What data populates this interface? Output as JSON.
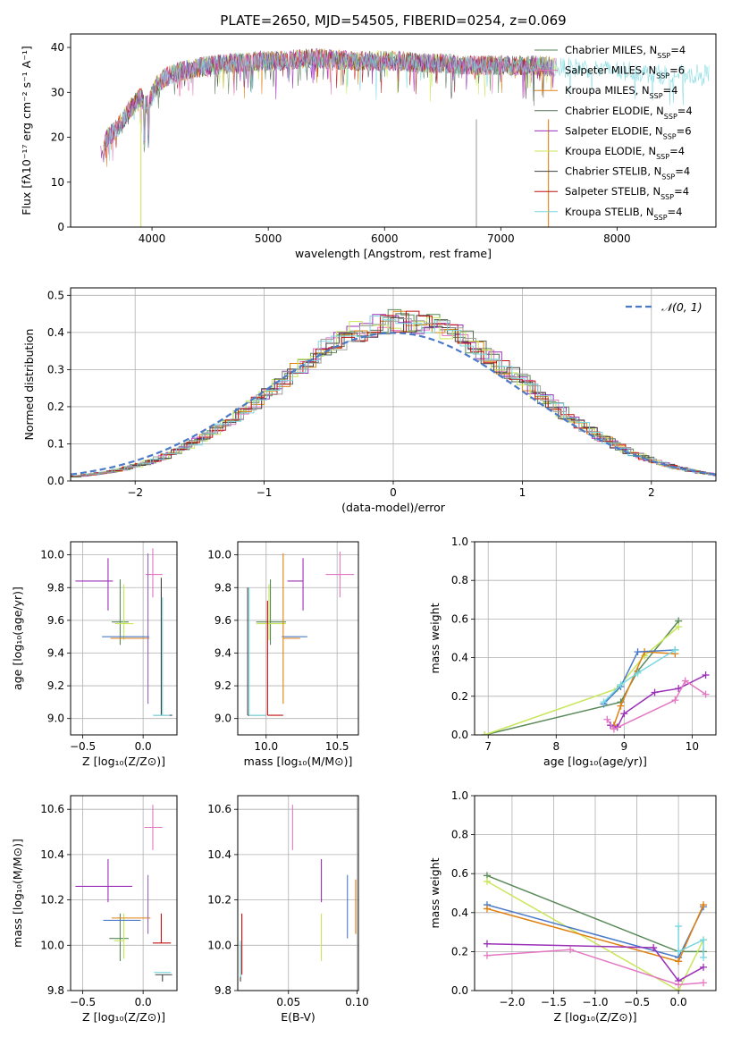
{
  "figure": {
    "title": "PLATE=2650, MJD=54505, FIBERID=0254, z=0.069"
  },
  "colors": {
    "grid": "#b0b0b0",
    "series": [
      "#5a8a5a",
      "#e377c2",
      "#e08010",
      "#556b55",
      "#9b30b8",
      "#c8e65a",
      "#404040",
      "#c01010",
      "#78d8e0",
      "#4a7ac8"
    ]
  },
  "chart_data": [
    {
      "id": "spectrum",
      "type": "line",
      "title": "PLATE=2650, MJD=54505, FIBERID=0254, z=0.069",
      "xlabel": "wavelength [Angstrom, rest frame]",
      "ylabel": "Flux [fλ10⁻¹⁷ erg cm⁻² s⁻¹ A⁻¹]",
      "xlim": [
        3300,
        8850
      ],
      "ylim": [
        0,
        43
      ],
      "xticks": [
        "4000",
        "5000",
        "6000",
        "7000",
        "8000"
      ],
      "yticks": [
        "0",
        "10",
        "20",
        "30",
        "40"
      ],
      "legend_position": "right",
      "legend": [
        "Chabrier MILES, N_SSP=4",
        "Salpeter MILES, N_SSP=6",
        "Kroupa MILES, N_SSP=4",
        "Chabrier ELODIE, N_SSP=4",
        "Salpeter ELODIE, N_SSP=6",
        "Kroupa ELODIE, N_SSP=4",
        "Chabrier STELIB, N_SSP=4",
        "Salpeter STELIB, N_SSP=4",
        "Kroupa STELIB, N_SSP=4"
      ],
      "envelope": {
        "x": [
          3560,
          3620,
          3700,
          3800,
          3900,
          3960,
          4050,
          4150,
          4300,
          4500,
          4700,
          4900,
          5100,
          5300,
          5500,
          5700,
          5900,
          6100,
          6300,
          6500,
          6700,
          6900,
          7100,
          7300,
          7500,
          7700,
          7900,
          8100,
          8300,
          8500,
          8800
        ],
        "y": [
          16,
          20,
          22,
          26,
          29,
          27,
          32,
          34,
          35,
          36,
          36.5,
          37,
          37,
          37.5,
          37.5,
          37,
          37,
          37,
          36.5,
          36.5,
          36,
          36,
          36,
          36,
          35.5,
          35.5,
          35,
          35,
          34,
          34,
          34
        ]
      }
    },
    {
      "id": "residuals",
      "type": "line",
      "xlabel": "(data-model)/error",
      "ylabel": "Normed distribution",
      "xlim": [
        -2.5,
        2.5
      ],
      "ylim": [
        0,
        0.52
      ],
      "xticks": [
        "−2",
        "−1",
        "0",
        "1",
        "2"
      ],
      "yticks": [
        "0.0",
        "0.1",
        "0.2",
        "0.3",
        "0.4",
        "0.5"
      ],
      "legend": [
        "𝒩(0, 1)"
      ],
      "legend_position": "top-right",
      "bin_width": 0.1,
      "reference_curve": "normal(0,1)"
    },
    {
      "id": "z-age",
      "type": "scatter",
      "xlabel": "Z [log₁₀(Z/Z⊙)]",
      "ylabel": "age  [log₁₀(age/yr)]",
      "xlim": [
        -0.6,
        0.28
      ],
      "ylim": [
        8.9,
        10.08
      ],
      "xticks": [
        "−0.5",
        "0.0"
      ],
      "yticks": [
        "9.0",
        "9.2",
        "9.4",
        "9.6",
        "9.8",
        "10.0"
      ],
      "points": [
        {
          "x": -0.29,
          "y": 9.84,
          "xerr": [
            0.27,
            0.04
          ],
          "yerr": [
            0.18,
            0.14
          ],
          "color": "#9b30b8"
        },
        {
          "x": 0.08,
          "y": 9.88,
          "xerr": [
            0.06,
            0.08
          ],
          "yerr": [
            0.14,
            0.16
          ],
          "color": "#e377c2"
        },
        {
          "x": -0.19,
          "y": 9.59,
          "xerr": [
            0.07,
            0.07
          ],
          "yerr": [
            0.14,
            0.26
          ],
          "color": "#5a8a5a"
        },
        {
          "x": -0.16,
          "y": 9.58,
          "xerr": [
            0.07,
            0.08
          ],
          "yerr": [
            0.1,
            0.24
          ],
          "color": "#c8e65a"
        },
        {
          "x": -0.19,
          "y": 9.5,
          "xerr": [
            0.15,
            0.24
          ],
          "yerr": [
            0.0,
            0.0
          ],
          "color": "#4a7ac8"
        },
        {
          "x": -0.12,
          "y": 9.49,
          "xerr": [
            0.15,
            0.17
          ],
          "yerr": [
            0.0,
            0.0
          ],
          "color": "#e08010"
        },
        {
          "x": 0.04,
          "y": 9.49,
          "xerr": [
            0.0,
            0.0
          ],
          "yerr": [
            0.4,
            0.52
          ],
          "color": "#9467bd"
        },
        {
          "x": 0.15,
          "y": 9.02,
          "xerr": [
            0.06,
            0.09
          ],
          "yerr": [
            0.0,
            0.84
          ],
          "color": "#404040"
        },
        {
          "x": 0.16,
          "y": 9.02,
          "xerr": [
            0.08,
            0.06
          ],
          "yerr": [
            0.0,
            0.72
          ],
          "color": "#78d8e0"
        }
      ]
    },
    {
      "id": "mass-age",
      "type": "scatter",
      "xlabel": "mass [log₁₀(M/M⊙)]",
      "ylabel": "",
      "xlim": [
        9.8,
        10.65
      ],
      "ylim": [
        8.9,
        10.08
      ],
      "xticks": [
        "10.0",
        "10.5"
      ],
      "yticks": [
        "9.0",
        "9.2",
        "9.4",
        "9.6",
        "9.8",
        "10.0"
      ],
      "points": [
        {
          "x": 10.26,
          "y": 9.84,
          "xerr": [
            0.11,
            0.0
          ],
          "yerr": [
            0.18,
            0.14
          ],
          "color": "#9b30b8"
        },
        {
          "x": 10.52,
          "y": 9.88,
          "xerr": [
            0.1,
            0.1
          ],
          "yerr": [
            0.14,
            0.14
          ],
          "color": "#e377c2"
        },
        {
          "x": 10.03,
          "y": 9.59,
          "xerr": [
            0.1,
            0.11
          ],
          "yerr": [
            0.14,
            0.26
          ],
          "color": "#5a8a5a"
        },
        {
          "x": 10.02,
          "y": 9.58,
          "xerr": [
            0.09,
            0.12
          ],
          "yerr": [
            0.1,
            0.24
          ],
          "color": "#c8e65a"
        },
        {
          "x": 10.17,
          "y": 9.5,
          "xerr": [
            0.06,
            0.12
          ],
          "yerr": [
            0.0,
            0.0
          ],
          "color": "#4a7ac8"
        },
        {
          "x": 10.12,
          "y": 9.49,
          "xerr": [
            0.0,
            0.12
          ],
          "yerr": [
            0.4,
            0.52
          ],
          "color": "#e08010"
        },
        {
          "x": 10.01,
          "y": 9.02,
          "xerr": [
            0.0,
            0.11
          ],
          "yerr": [
            0.0,
            0.7
          ],
          "color": "#c01010"
        },
        {
          "x": 9.87,
          "y": 9.02,
          "xerr": [
            0.0,
            0.13
          ],
          "yerr": [
            0.0,
            0.78
          ],
          "color": "#404040"
        },
        {
          "x": 9.88,
          "y": 9.02,
          "xerr": [
            0.0,
            0.12
          ],
          "yerr": [
            0.0,
            0.78
          ],
          "color": "#78d8e0"
        }
      ]
    },
    {
      "id": "age-massweight",
      "type": "line",
      "xlabel": "age  [log₁₀(age/yr)]",
      "ylabel": "mass weight",
      "xlim": [
        6.8,
        10.35
      ],
      "ylim": [
        0,
        1.0
      ],
      "xticks": [
        "7",
        "8",
        "9",
        "10"
      ],
      "yticks": [
        "0.0",
        "0.2",
        "0.4",
        "0.6",
        "0.8",
        "1.0"
      ],
      "series": [
        {
          "color": "#5a8a5a",
          "x": [
            6.95,
            8.95,
            9.2,
            9.8
          ],
          "y": [
            0.0,
            0.17,
            0.33,
            0.59
          ]
        },
        {
          "color": "#c8e65a",
          "x": [
            6.95,
            8.9,
            9.3,
            9.8
          ],
          "y": [
            0.0,
            0.24,
            0.41,
            0.56
          ]
        },
        {
          "color": "#e08010",
          "x": [
            8.85,
            8.95,
            9.3,
            9.75
          ],
          "y": [
            0.05,
            0.15,
            0.43,
            0.42
          ]
        },
        {
          "color": "#4a7ac8",
          "x": [
            8.7,
            8.95,
            9.2,
            9.75
          ],
          "y": [
            0.16,
            0.25,
            0.43,
            0.44
          ]
        },
        {
          "color": "#78d8e0",
          "x": [
            8.7,
            8.95,
            9.2,
            9.75
          ],
          "y": [
            0.17,
            0.26,
            0.32,
            0.44
          ]
        },
        {
          "color": "#9b30b8",
          "x": [
            8.8,
            8.9,
            9.0,
            9.45,
            9.8,
            10.2
          ],
          "y": [
            0.05,
            0.04,
            0.11,
            0.22,
            0.24,
            0.31
          ]
        },
        {
          "color": "#e377c2",
          "x": [
            8.75,
            8.85,
            9.75,
            9.9,
            10.2
          ],
          "y": [
            0.08,
            0.03,
            0.18,
            0.28,
            0.21
          ]
        }
      ]
    },
    {
      "id": "z-mass",
      "type": "scatter",
      "xlabel": "Z [log₁₀(Z/Z⊙)]",
      "ylabel": "mass [log₁₀(M/M⊙)]",
      "xlim": [
        -0.6,
        0.28
      ],
      "ylim": [
        9.8,
        10.66
      ],
      "xticks": [
        "−0.5",
        "0.0"
      ],
      "yticks": [
        "9.8",
        "10.0",
        "10.2",
        "10.4",
        "10.6"
      ],
      "points": [
        {
          "x": -0.29,
          "y": 10.26,
          "xerr": [
            0.27,
            0.2
          ],
          "yerr": [
            0.07,
            0.12
          ],
          "color": "#9b30b8"
        },
        {
          "x": 0.08,
          "y": 10.52,
          "xerr": [
            0.07,
            0.08
          ],
          "yerr": [
            0.1,
            0.1
          ],
          "color": "#e377c2"
        },
        {
          "x": -0.19,
          "y": 10.03,
          "xerr": [
            0.09,
            0.07
          ],
          "yerr": [
            0.1,
            0.11
          ],
          "color": "#5a8a5a"
        },
        {
          "x": -0.16,
          "y": 10.02,
          "xerr": [
            0.08,
            0.0
          ],
          "yerr": [
            0.08,
            0.12
          ],
          "color": "#c8e65a"
        },
        {
          "x": -0.19,
          "y": 10.11,
          "xerr": [
            0.14,
            0.17
          ],
          "yerr": [
            0.0,
            0.0
          ],
          "color": "#4a7ac8"
        },
        {
          "x": -0.12,
          "y": 10.12,
          "xerr": [
            0.14,
            0.18
          ],
          "yerr": [
            0.0,
            0.0
          ],
          "color": "#e08010"
        },
        {
          "x": 0.04,
          "y": 10.17,
          "xerr": [
            0.0,
            0.0
          ],
          "yerr": [
            0.12,
            0.14
          ],
          "color": "#9467bd"
        },
        {
          "x": 0.15,
          "y": 10.01,
          "xerr": [
            0.07,
            0.08
          ],
          "yerr": [
            0.0,
            0.13
          ],
          "color": "#c01010"
        },
        {
          "x": 0.16,
          "y": 9.87,
          "xerr": [
            0.06,
            0.08
          ],
          "yerr": [
            0.03,
            0.0
          ],
          "color": "#404040"
        },
        {
          "x": 0.16,
          "y": 9.88,
          "xerr": [
            0.07,
            0.07
          ],
          "yerr": [
            0.0,
            0.0
          ],
          "color": "#78d8e0"
        }
      ]
    },
    {
      "id": "ebv-mass",
      "type": "scatter",
      "xlabel": "E(B-V)",
      "ylabel": "",
      "xlim": [
        0.013,
        0.101
      ],
      "ylim": [
        9.8,
        10.66
      ],
      "xticks": [
        "0.05",
        "0.10"
      ],
      "yticks": [
        "9.8",
        "10.0",
        "10.2",
        "10.4",
        "10.6"
      ],
      "points": [
        {
          "x": 0.053,
          "y": 10.52,
          "yerr": [
            0.1,
            0.1
          ],
          "color": "#e377c2"
        },
        {
          "x": 0.074,
          "y": 10.26,
          "yerr": [
            0.07,
            0.12
          ],
          "color": "#9b30b8"
        },
        {
          "x": 0.074,
          "y": 10.03,
          "yerr": [
            0.1,
            0.11
          ],
          "color": "#c8e65a"
        },
        {
          "x": 0.093,
          "y": 10.17,
          "yerr": [
            0.14,
            0.14
          ],
          "color": "#4a7ac8"
        },
        {
          "x": 0.099,
          "y": 10.17,
          "yerr": [
            0.12,
            0.12
          ],
          "color": "#e08010"
        },
        {
          "x": 0.016,
          "y": 10.01,
          "yerr": [
            0.14,
            0.13
          ],
          "color": "#c01010"
        },
        {
          "x": 0.015,
          "y": 9.9,
          "yerr": [
            0.06,
            0.1
          ],
          "color": "#404040"
        },
        {
          "x": 0.015,
          "y": 9.92,
          "yerr": [
            0.06,
            0.1
          ],
          "color": "#78d8e0"
        }
      ]
    },
    {
      "id": "z-massweight",
      "type": "line",
      "xlabel": "Z [log₁₀(Z/Z⊙)]",
      "ylabel": "mass weight",
      "xlim": [
        -2.45,
        0.45
      ],
      "ylim": [
        0,
        1.0
      ],
      "xticks": [
        "−2.0",
        "−1.5",
        "−1.0",
        "−0.5",
        "0.0"
      ],
      "yticks": [
        "0.0",
        "0.2",
        "0.4",
        "0.6",
        "0.8",
        "1.0"
      ],
      "series": [
        {
          "color": "#5a8a5a",
          "x": [
            -2.3,
            0.0,
            0.3
          ],
          "y": [
            0.59,
            0.2,
            0.2
          ]
        },
        {
          "color": "#c8e65a",
          "x": [
            -2.3,
            0.0,
            0.3
          ],
          "y": [
            0.56,
            0.0,
            0.26
          ]
        },
        {
          "color": "#4a7ac8",
          "x": [
            -2.3,
            0.0,
            0.3
          ],
          "y": [
            0.44,
            0.17,
            0.43
          ]
        },
        {
          "color": "#e08010",
          "x": [
            -2.3,
            0.0,
            0.3
          ],
          "y": [
            0.42,
            0.15,
            0.44
          ]
        },
        {
          "color": "#9b30b8",
          "x": [
            -2.3,
            -0.3,
            0.0,
            0.3
          ],
          "y": [
            0.24,
            0.22,
            0.05,
            0.12
          ]
        },
        {
          "color": "#e377c2",
          "x": [
            -2.3,
            -1.3,
            0.0,
            0.3
          ],
          "y": [
            0.18,
            0.21,
            0.03,
            0.04
          ]
        },
        {
          "color": "#78d8e0",
          "x": [
            0.0,
            0.0,
            0.3,
            0.3
          ],
          "y": [
            0.33,
            0.2,
            0.26,
            0.17
          ]
        }
      ]
    }
  ]
}
